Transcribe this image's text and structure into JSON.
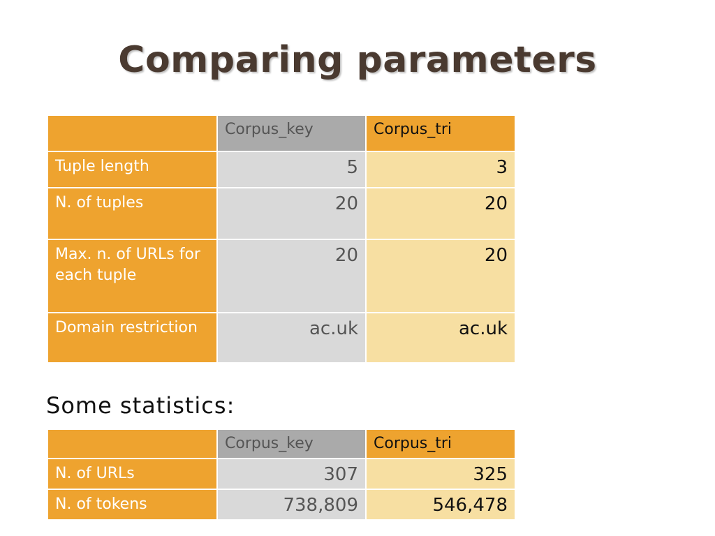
{
  "title": "Comparing parameters",
  "params_table": {
    "headers": [
      "",
      "Corpus_key",
      "Corpus_tri"
    ],
    "rows": [
      {
        "label": "Tuple length",
        "key": "5",
        "tri": "3"
      },
      {
        "label": "N. of tuples",
        "key": "20",
        "tri": "20"
      },
      {
        "label": "Max. n. of URLs for each tuple",
        "key": "20",
        "tri": "20"
      },
      {
        "label": "Domain restriction",
        "key": "ac.uk",
        "tri": "ac.uk"
      }
    ]
  },
  "stats_heading": "Some statistics:",
  "stats_table": {
    "headers": [
      "",
      "Corpus_key",
      "Corpus_tri"
    ],
    "rows": [
      {
        "label": "N. of URLs",
        "key": "307",
        "tri": "325"
      },
      {
        "label": "N. of tokens",
        "key": "738,809",
        "tri": "546,478"
      }
    ]
  },
  "colors": {
    "label_orange": "#eea32f",
    "key_header_gray": "#aaaaaa",
    "key_cell_gray": "#d9d9d9",
    "tri_cell_cream": "#f7dfa2",
    "title_brown": "#4a3a30"
  }
}
